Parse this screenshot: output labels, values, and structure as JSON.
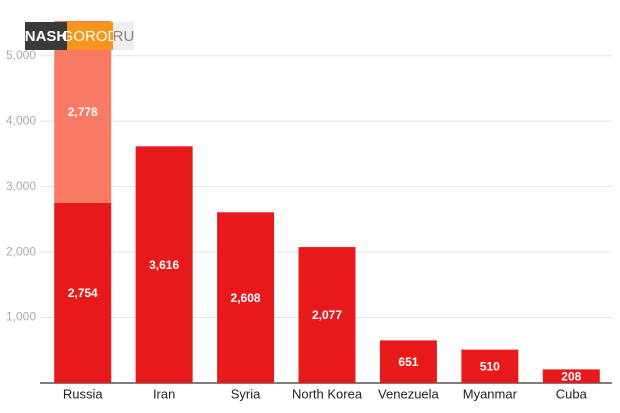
{
  "watermark": [
    "NASH",
    "GOROD",
    "RU"
  ],
  "chart_data": {
    "type": "stacked_bar",
    "categories": [
      "Russia",
      "Iran",
      "Syria",
      "North Korea",
      "Venezuela",
      "Myanmar",
      "Cuba"
    ],
    "series": [
      {
        "color": "#e8191b",
        "values": [
          2754,
          3616,
          2608,
          2077,
          651,
          510,
          208
        ],
        "value_labels": [
          "2,754",
          "3,616",
          "2,608",
          "2,077",
          "651",
          "510",
          "208"
        ]
      },
      {
        "color": "#f97a62",
        "values": [
          2778,
          null,
          null,
          null,
          null,
          null,
          null
        ],
        "value_labels": [
          "2,778",
          null,
          null,
          null,
          null,
          null,
          null
        ]
      }
    ],
    "ylim": [
      0,
      5500
    ],
    "yticks": [
      {
        "value": 1000,
        "label": "1,000"
      },
      {
        "value": 2000,
        "label": "2,000"
      },
      {
        "value": 3000,
        "label": "3,000"
      },
      {
        "value": 4000,
        "label": "4,000"
      },
      {
        "value": 5000,
        "label": "5,000"
      }
    ],
    "grid": true
  }
}
